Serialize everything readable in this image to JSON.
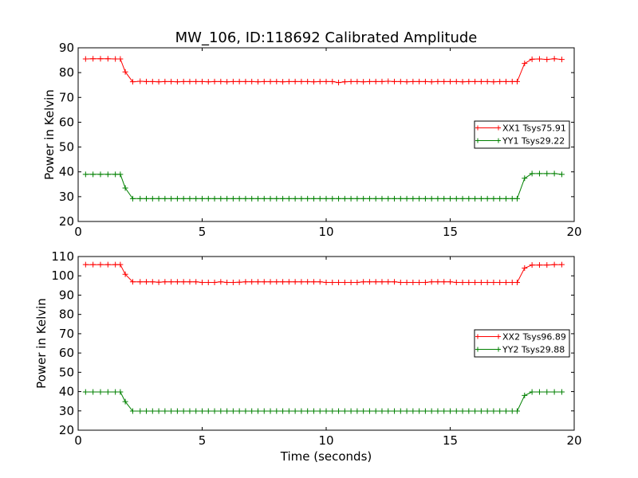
{
  "figure": {
    "title": "MW_106, ID:118692 Calibrated Amplitude",
    "xlabel": "Time (seconds)"
  },
  "colors": {
    "red": "#ff0000",
    "green": "#008000",
    "axes": "#000000",
    "background": "#ffffff"
  },
  "chart_data": [
    {
      "type": "line",
      "title": "MW_106, ID:118692 Calibrated Amplitude",
      "xlabel": "",
      "ylabel": "Power in Kelvin",
      "xlim": [
        0,
        20
      ],
      "ylim": [
        20,
        90
      ],
      "xticks": [
        0,
        5,
        10,
        15,
        20
      ],
      "yticks": [
        20,
        30,
        40,
        50,
        60,
        70,
        80,
        90
      ],
      "grid": false,
      "legend": "center-right",
      "x": [
        0.3,
        0.6,
        0.9,
        1.2,
        1.5,
        1.7,
        1.9,
        2.2,
        2.5,
        2.75,
        3.0,
        3.25,
        3.5,
        3.75,
        4.0,
        4.25,
        4.5,
        4.75,
        5.0,
        5.25,
        5.5,
        5.75,
        6.0,
        6.25,
        6.5,
        6.75,
        7.0,
        7.25,
        7.5,
        7.75,
        8.0,
        8.25,
        8.5,
        8.75,
        9.0,
        9.25,
        9.5,
        9.75,
        10.0,
        10.25,
        10.5,
        10.75,
        11.0,
        11.25,
        11.5,
        11.75,
        12.0,
        12.25,
        12.5,
        12.75,
        13.0,
        13.25,
        13.5,
        13.75,
        14.0,
        14.25,
        14.5,
        14.75,
        15.0,
        15.25,
        15.5,
        15.75,
        16.0,
        16.25,
        16.5,
        16.75,
        17.0,
        17.25,
        17.5,
        17.7,
        18.0,
        18.3,
        18.6,
        18.9,
        19.2,
        19.5
      ],
      "series": [
        {
          "name": "XX1 Tsys75.91",
          "color": "#ff0000",
          "values": [
            85.5,
            85.6,
            85.6,
            85.6,
            85.5,
            85.5,
            80.3,
            76.3,
            76.5,
            76.4,
            76.4,
            76.3,
            76.4,
            76.4,
            76.3,
            76.4,
            76.4,
            76.4,
            76.4,
            76.3,
            76.4,
            76.4,
            76.3,
            76.4,
            76.4,
            76.4,
            76.4,
            76.3,
            76.4,
            76.4,
            76.4,
            76.3,
            76.4,
            76.4,
            76.4,
            76.4,
            76.3,
            76.4,
            76.4,
            76.4,
            76.0,
            76.3,
            76.4,
            76.4,
            76.3,
            76.4,
            76.4,
            76.4,
            76.5,
            76.4,
            76.4,
            76.3,
            76.4,
            76.4,
            76.4,
            76.3,
            76.4,
            76.4,
            76.4,
            76.4,
            76.3,
            76.4,
            76.4,
            76.4,
            76.4,
            76.3,
            76.4,
            76.4,
            76.4,
            76.4,
            83.7,
            85.4,
            85.5,
            85.3,
            85.6,
            85.3
          ]
        },
        {
          "name": "YY1 Tsys29.22",
          "color": "#008000",
          "values": [
            39.0,
            39.0,
            39.0,
            39.0,
            39.0,
            39.0,
            33.5,
            29.2,
            29.2,
            29.2,
            29.2,
            29.2,
            29.2,
            29.2,
            29.2,
            29.2,
            29.2,
            29.2,
            29.2,
            29.2,
            29.2,
            29.2,
            29.2,
            29.2,
            29.2,
            29.2,
            29.2,
            29.2,
            29.2,
            29.2,
            29.2,
            29.2,
            29.2,
            29.2,
            29.2,
            29.2,
            29.2,
            29.2,
            29.2,
            29.2,
            29.2,
            29.2,
            29.2,
            29.2,
            29.2,
            29.2,
            29.2,
            29.2,
            29.2,
            29.2,
            29.2,
            29.2,
            29.2,
            29.2,
            29.2,
            29.2,
            29.2,
            29.2,
            29.2,
            29.2,
            29.2,
            29.2,
            29.2,
            29.2,
            29.2,
            29.2,
            29.2,
            29.2,
            29.2,
            29.2,
            37.4,
            39.3,
            39.3,
            39.3,
            39.3,
            39.0
          ]
        }
      ]
    },
    {
      "type": "line",
      "title": "",
      "xlabel": "Time (seconds)",
      "ylabel": "Power in Kelvin",
      "xlim": [
        0,
        20
      ],
      "ylim": [
        20,
        110
      ],
      "xticks": [
        0,
        5,
        10,
        15,
        20
      ],
      "yticks": [
        20,
        30,
        40,
        50,
        60,
        70,
        80,
        90,
        100,
        110
      ],
      "grid": false,
      "legend": "center-right",
      "x": [
        0.3,
        0.6,
        0.9,
        1.2,
        1.5,
        1.7,
        1.9,
        2.2,
        2.5,
        2.75,
        3.0,
        3.25,
        3.5,
        3.75,
        4.0,
        4.25,
        4.5,
        4.75,
        5.0,
        5.25,
        5.5,
        5.75,
        6.0,
        6.25,
        6.5,
        6.75,
        7.0,
        7.25,
        7.5,
        7.75,
        8.0,
        8.25,
        8.5,
        8.75,
        9.0,
        9.25,
        9.5,
        9.75,
        10.0,
        10.25,
        10.5,
        10.75,
        11.0,
        11.25,
        11.5,
        11.75,
        12.0,
        12.25,
        12.5,
        12.75,
        13.0,
        13.25,
        13.5,
        13.75,
        14.0,
        14.25,
        14.5,
        14.75,
        15.0,
        15.25,
        15.5,
        15.75,
        16.0,
        16.25,
        16.5,
        16.75,
        17.0,
        17.25,
        17.5,
        17.7,
        18.0,
        18.3,
        18.6,
        18.9,
        19.2,
        19.5
      ],
      "series": [
        {
          "name": "XX2 Tsys96.89",
          "color": "#ff0000",
          "values": [
            105.8,
            105.8,
            105.8,
            105.8,
            105.8,
            105.8,
            100.8,
            96.9,
            96.9,
            96.9,
            96.9,
            96.7,
            96.9,
            96.9,
            96.9,
            96.9,
            96.9,
            96.9,
            96.6,
            96.6,
            96.6,
            96.9,
            96.6,
            96.6,
            96.7,
            96.9,
            96.9,
            96.9,
            96.9,
            96.9,
            96.9,
            96.9,
            96.9,
            96.9,
            96.9,
            96.9,
            96.9,
            96.9,
            96.6,
            96.6,
            96.6,
            96.6,
            96.6,
            96.6,
            96.9,
            96.9,
            96.9,
            96.9,
            96.9,
            96.9,
            96.6,
            96.6,
            96.6,
            96.6,
            96.6,
            96.9,
            96.9,
            96.9,
            96.9,
            96.6,
            96.6,
            96.6,
            96.6,
            96.6,
            96.6,
            96.6,
            96.6,
            96.6,
            96.6,
            96.6,
            104.0,
            105.6,
            105.6,
            105.6,
            105.8,
            105.8
          ]
        },
        {
          "name": "YY2 Tsys29.88",
          "color": "#008000",
          "values": [
            39.8,
            39.8,
            39.8,
            39.8,
            39.8,
            39.8,
            34.8,
            29.9,
            29.9,
            29.9,
            29.9,
            29.9,
            29.9,
            29.9,
            29.9,
            29.9,
            29.9,
            29.9,
            29.9,
            29.9,
            29.9,
            29.9,
            29.9,
            29.9,
            29.9,
            29.9,
            29.9,
            29.9,
            29.9,
            29.9,
            29.9,
            29.9,
            29.9,
            29.9,
            29.9,
            29.9,
            29.9,
            29.9,
            29.9,
            29.9,
            29.9,
            29.9,
            29.9,
            29.9,
            29.9,
            29.9,
            29.9,
            29.9,
            29.9,
            29.9,
            29.9,
            29.9,
            29.9,
            29.9,
            29.9,
            29.9,
            29.9,
            29.9,
            29.9,
            29.9,
            29.9,
            29.9,
            29.9,
            29.9,
            29.9,
            29.9,
            29.9,
            29.9,
            29.9,
            29.9,
            38.0,
            39.8,
            39.8,
            39.8,
            39.8,
            39.8
          ]
        }
      ]
    }
  ]
}
